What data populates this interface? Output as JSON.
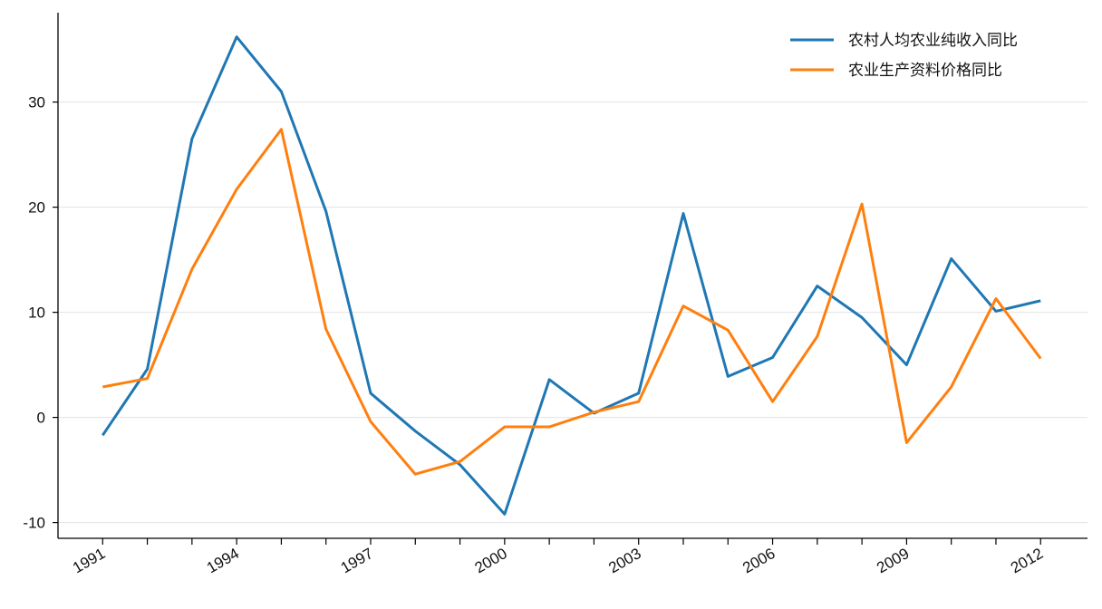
{
  "chart_data": {
    "type": "line",
    "title": "",
    "xlabel": "",
    "ylabel": "",
    "x": [
      1991,
      1992,
      1993,
      1994,
      1995,
      1996,
      1997,
      1998,
      1999,
      2000,
      2001,
      2002,
      2003,
      2004,
      2005,
      2006,
      2007,
      2008,
      2009,
      2010,
      2011,
      2012
    ],
    "x_tick_labels": [
      "1991",
      "1994",
      "1997",
      "2000",
      "2003",
      "2006",
      "2009",
      "2012"
    ],
    "x_tick_values": [
      1991,
      1994,
      1997,
      2000,
      2003,
      2006,
      2009,
      2012
    ],
    "y_ticks": [
      -10,
      0,
      10,
      20,
      30
    ],
    "y_tick_labels": [
      "-10",
      "0",
      "10",
      "20",
      "30"
    ],
    "xlim": [
      1990,
      2013.05
    ],
    "ylim": [
      -11.5,
      38.5
    ],
    "grid": "horizontal",
    "legend_position": "top-right",
    "series": [
      {
        "name": "农村人均农业纯收入同比",
        "color": "#1f77b4",
        "values": [
          -1.7,
          4.6,
          26.5,
          36.2,
          31.0,
          19.6,
          2.3,
          -1.3,
          -4.5,
          -9.2,
          3.6,
          0.4,
          2.3,
          19.4,
          3.9,
          5.7,
          12.5,
          9.5,
          5.0,
          15.1,
          10.1,
          11.1
        ]
      },
      {
        "name": "农业生产资料价格同比",
        "color": "#ff7f0e",
        "values": [
          2.9,
          3.7,
          14.1,
          21.7,
          27.4,
          8.4,
          -0.4,
          -5.4,
          -4.2,
          -0.9,
          -0.9,
          0.5,
          1.5,
          10.6,
          8.3,
          1.5,
          7.7,
          20.3,
          -2.4,
          2.9,
          11.3,
          5.6
        ]
      }
    ]
  }
}
